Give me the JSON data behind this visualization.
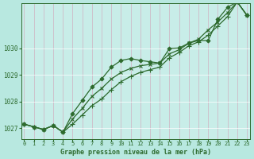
{
  "title": "Graphe pression niveau de la mer (hPa)",
  "background_color": "#b8e8e0",
  "plot_bg_color": "#c8ede8",
  "grid_color": "#a0d8d0",
  "line_color": "#2d6a2d",
  "xlim_min": -0.3,
  "xlim_max": 23.3,
  "ylim_min": 1026.6,
  "ylim_max": 1031.7,
  "yticks": [
    1027,
    1028,
    1029,
    1030
  ],
  "xticks": [
    0,
    1,
    2,
    3,
    4,
    5,
    6,
    7,
    8,
    9,
    10,
    11,
    12,
    13,
    14,
    15,
    16,
    17,
    18,
    19,
    20,
    21,
    22,
    23
  ],
  "series": [
    {
      "y": [
        1027.15,
        1027.05,
        1026.95,
        1027.1,
        1026.85,
        1027.55,
        1028.05,
        1028.55,
        1028.85,
        1029.3,
        1029.55,
        1029.62,
        1029.55,
        1029.5,
        1029.45,
        1030.0,
        1030.02,
        1030.2,
        1030.3,
        1030.3,
        1031.1,
        1031.55,
        1031.75,
        1031.25
      ],
      "marker": "D",
      "ms": 2.5,
      "lw": 0.9
    },
    {
      "y": [
        1027.15,
        1027.05,
        1026.95,
        1027.1,
        1026.85,
        1027.15,
        1027.5,
        1027.85,
        1028.1,
        1028.45,
        1028.75,
        1028.95,
        1029.1,
        1029.2,
        1029.3,
        1029.65,
        1029.85,
        1030.1,
        1030.25,
        1030.5,
        1030.85,
        1031.2,
        1031.75,
        1031.25
      ],
      "marker": "+",
      "ms": 4,
      "lw": 0.9
    },
    {
      "y": [
        1027.15,
        1027.05,
        1026.95,
        1027.1,
        1026.85,
        1027.35,
        1027.75,
        1028.2,
        1028.5,
        1028.85,
        1029.1,
        1029.25,
        1029.35,
        1029.4,
        1029.45,
        1029.8,
        1029.95,
        1030.2,
        1030.35,
        1030.7,
        1031.0,
        1031.35,
        1031.75,
        1031.25
      ],
      "marker": "x",
      "ms": 3,
      "lw": 0.9
    }
  ]
}
